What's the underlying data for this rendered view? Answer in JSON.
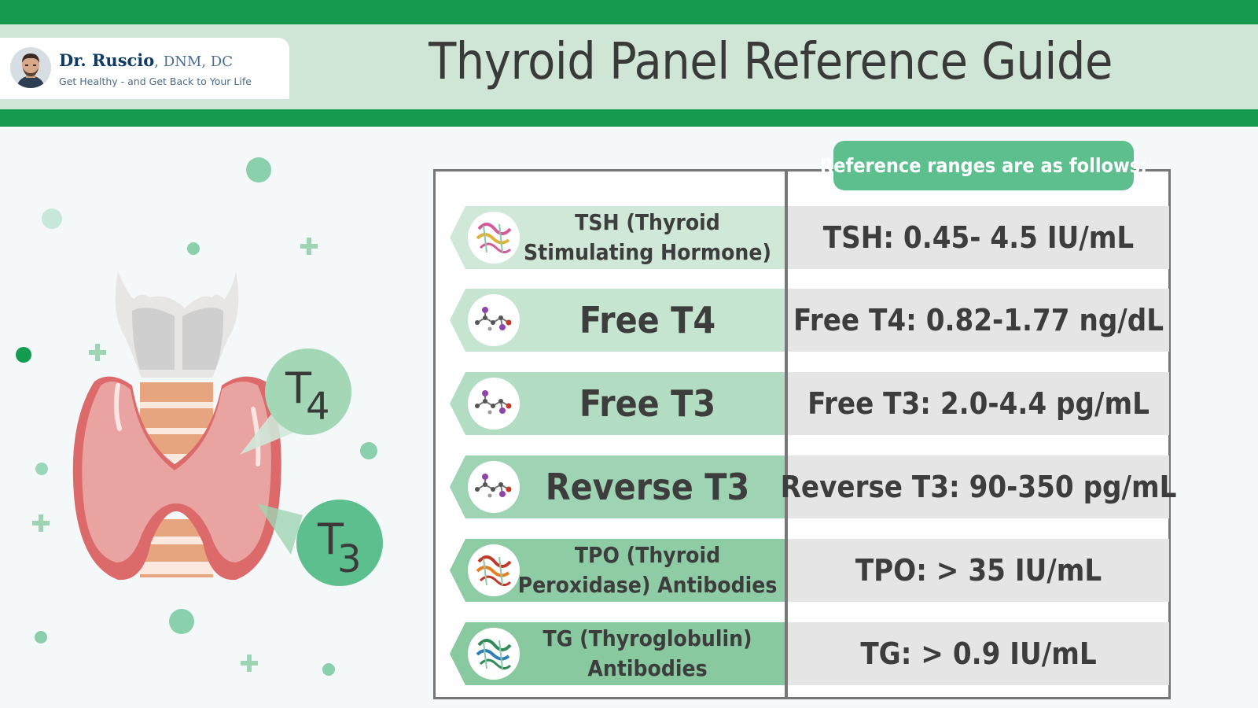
{
  "header": {
    "brand_name": "Dr. Ruscio",
    "brand_credentials": ", DNM, DC",
    "tagline": "Get Healthy - and Get Back to Your Life",
    "title": "Thyroid Panel Reference Guide"
  },
  "illustration": {
    "hormone_t4": {
      "letter": "T",
      "subscript": "4"
    },
    "hormone_t3": {
      "letter": "T",
      "subscript": "3"
    }
  },
  "table": {
    "header": "Reference ranges are as follows:",
    "rows": [
      {
        "label": "TSH (Thyroid Stimulating Hormone)",
        "label_line1": "TSH (Thyroid",
        "label_line2": "Stimulating Hormone)",
        "value": "TSH: 0.45- 4.5 IU/mL",
        "color": "#cfe8d8",
        "icon": "protein-ribbon-icon"
      },
      {
        "label": "Free T4",
        "value": "Free T4: 0.82-1.77 ng/dL",
        "color": "#c6e5d1",
        "icon": "molecule-icon"
      },
      {
        "label": "Free T3",
        "value": "Free T3: 2.0-4.4 pg/mL",
        "color": "#b2ddc2",
        "icon": "molecule-icon"
      },
      {
        "label": "Reverse T3",
        "value": "Reverse T3: 90-350 pg/mL",
        "color": "#9ed4b3",
        "icon": "molecule-icon"
      },
      {
        "label": "TPO (Thyroid Peroxidase) Antibodies",
        "label_line1": "TPO (Thyroid",
        "label_line2": "Peroxidase) Antibodies",
        "value": "TPO: > 35 IU/mL",
        "color": "#8ecca5",
        "icon": "protein-ribbon-icon"
      },
      {
        "label": "TG (Thyroglobulin) Antibodies",
        "label_line1": "TG (Thyroglobulin)",
        "label_line2": "Antibodies",
        "value": "TG: > 0.9 IU/mL",
        "color": "#88c9a0",
        "icon": "protein-ribbon-icon"
      }
    ]
  },
  "colors": {
    "brand_green": "#149b4f",
    "band_green": "#cfe5d6",
    "accent_green": "#5dbf8d"
  }
}
